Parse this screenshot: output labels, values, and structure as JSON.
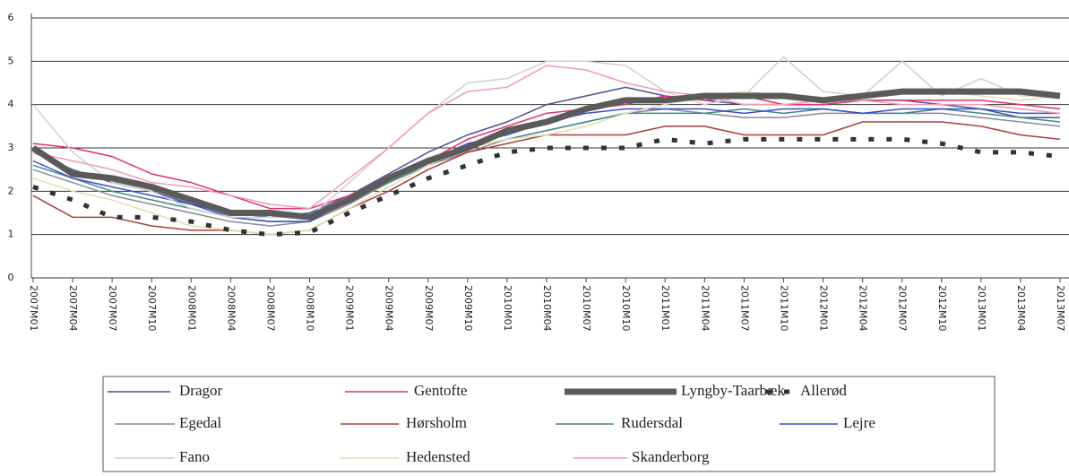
{
  "chart_data": {
    "type": "line",
    "categories": [
      "2007M01",
      "2007M04",
      "2007M07",
      "2007M10",
      "2008M01",
      "2008M04",
      "2008M07",
      "2008M10",
      "2009M01",
      "2009M04",
      "2009M07",
      "2009M10",
      "2010M01",
      "2010M04",
      "2010M07",
      "2010M10",
      "2011M01",
      "2011M04",
      "2011M07",
      "2011M10",
      "2012M01",
      "2012M04",
      "2012M07",
      "2012M10",
      "2013M01",
      "2013M04",
      "2013M07"
    ],
    "ylim": [
      0,
      6
    ],
    "yticks": [
      0,
      1,
      2,
      3,
      4,
      5,
      6
    ],
    "grid": true,
    "series": [
      {
        "name": "Dragor",
        "color": "#4a4f9c",
        "values": [
          2.9,
          2.5,
          2.2,
          2.0,
          1.7,
          1.5,
          1.4,
          1.5,
          1.9,
          2.4,
          2.9,
          3.3,
          3.6,
          4.0,
          4.2,
          4.4,
          4.2,
          4.1,
          4.0,
          4.0,
          4.0,
          4.1,
          4.1,
          4.0,
          3.9,
          3.7,
          3.7
        ]
      },
      {
        "name": "Gentofte",
        "color": "#e0306a",
        "values": [
          3.1,
          3.0,
          2.8,
          2.4,
          2.2,
          1.9,
          1.6,
          1.6,
          1.9,
          2.3,
          2.7,
          3.2,
          3.5,
          3.8,
          3.9,
          4.0,
          4.2,
          4.1,
          4.2,
          4.0,
          4.0,
          4.1,
          4.1,
          4.1,
          4.1,
          4.0,
          3.9
        ]
      },
      {
        "name": "Lyngby-Taarbæk",
        "color": "#5a5a5a",
        "style": "thick",
        "values": [
          3.0,
          2.4,
          2.3,
          2.1,
          1.8,
          1.5,
          1.5,
          1.4,
          1.8,
          2.3,
          2.7,
          3.0,
          3.4,
          3.6,
          3.9,
          4.1,
          4.1,
          4.2,
          4.2,
          4.2,
          4.1,
          4.2,
          4.3,
          4.3,
          4.3,
          4.3,
          4.2
        ]
      },
      {
        "name": "Allerød",
        "color": "#333333",
        "style": "dashed",
        "values": [
          2.1,
          1.8,
          1.4,
          1.4,
          1.3,
          1.1,
          1.0,
          1.05,
          1.5,
          1.9,
          2.3,
          2.6,
          2.9,
          3.0,
          3.0,
          3.0,
          3.2,
          3.1,
          3.2,
          3.2,
          3.2,
          3.2,
          3.2,
          3.1,
          2.9,
          2.9,
          2.8
        ]
      },
      {
        "name": "Egedal",
        "color": "#8a8a9a",
        "values": [
          2.5,
          2.2,
          1.9,
          1.7,
          1.5,
          1.3,
          1.2,
          1.3,
          1.7,
          2.2,
          2.6,
          2.9,
          3.2,
          3.4,
          3.6,
          3.8,
          3.9,
          3.8,
          3.7,
          3.7,
          3.8,
          3.8,
          3.8,
          3.8,
          3.7,
          3.6,
          3.5
        ]
      },
      {
        "name": "Hørsholm",
        "color": "#a8403a",
        "values": [
          1.9,
          1.4,
          1.4,
          1.2,
          1.1,
          1.1,
          1.0,
          1.1,
          1.6,
          2.0,
          2.5,
          2.9,
          3.1,
          3.3,
          3.3,
          3.3,
          3.5,
          3.5,
          3.3,
          3.3,
          3.3,
          3.6,
          3.6,
          3.6,
          3.5,
          3.3,
          3.2
        ]
      },
      {
        "name": "Rudersdal",
        "color": "#3e8a8a",
        "values": [
          2.6,
          2.3,
          2.0,
          1.8,
          1.6,
          1.4,
          1.3,
          1.3,
          1.8,
          2.2,
          2.6,
          3.0,
          3.2,
          3.4,
          3.6,
          3.8,
          3.8,
          3.8,
          3.9,
          3.8,
          3.9,
          3.8,
          3.8,
          3.9,
          3.8,
          3.7,
          3.6
        ]
      },
      {
        "name": "Lejre",
        "color": "#3a4ec8",
        "values": [
          2.7,
          2.3,
          2.1,
          1.9,
          1.7,
          1.4,
          1.3,
          1.3,
          1.8,
          2.3,
          2.7,
          3.1,
          3.3,
          3.6,
          3.8,
          3.9,
          3.9,
          3.9,
          3.8,
          3.9,
          3.9,
          3.8,
          3.9,
          3.9,
          3.9,
          3.8,
          3.8
        ]
      },
      {
        "name": "Fano",
        "color": "#cfcfcf",
        "values": [
          4.0,
          2.9,
          2.2,
          2.0,
          1.6,
          1.4,
          1.4,
          1.4,
          2.2,
          3.0,
          3.8,
          4.5,
          4.6,
          5.0,
          5.0,
          4.9,
          4.3,
          4.0,
          4.2,
          5.1,
          4.3,
          4.2,
          5.0,
          4.2,
          4.6,
          4.2,
          4.2
        ]
      },
      {
        "name": "Hedensted",
        "color": "#e6dcb0",
        "values": [
          2.3,
          2.0,
          1.8,
          1.5,
          1.2,
          1.1,
          1.0,
          1.1,
          1.6,
          2.1,
          2.6,
          3.0,
          3.2,
          3.3,
          3.5,
          3.8,
          4.0,
          4.2,
          4.3,
          4.2,
          4.1,
          4.2,
          4.3,
          4.3,
          4.2,
          4.1,
          4.2
        ]
      },
      {
        "name": "Skanderborg",
        "color": "#f29ab8",
        "values": [
          2.9,
          2.7,
          2.5,
          2.2,
          2.1,
          1.9,
          1.7,
          1.6,
          2.3,
          3.0,
          3.8,
          4.3,
          4.4,
          4.9,
          4.8,
          4.5,
          4.3,
          4.2,
          4.0,
          4.0,
          4.1,
          4.1,
          4.0,
          4.0,
          4.0,
          3.9,
          3.8
        ]
      }
    ]
  }
}
